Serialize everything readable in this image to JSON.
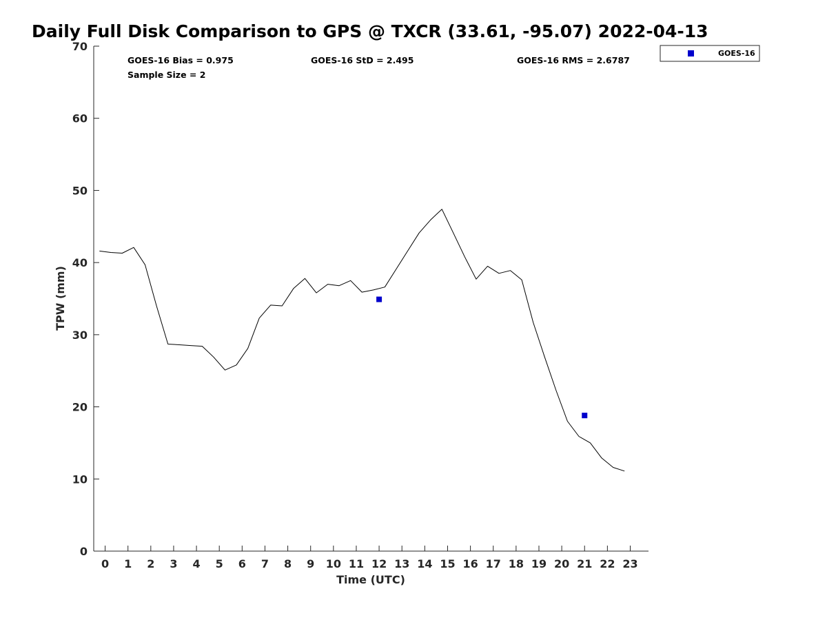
{
  "chart_data": {
    "type": "line",
    "title": "Daily Full Disk Comparison to GPS @ TXCR (33.61, -95.07) 2022-04-13",
    "xlabel": "Time (UTC)",
    "ylabel": "TPW (mm)",
    "xlim": [
      -0.5,
      23.8
    ],
    "ylim": [
      0,
      70
    ],
    "x_ticks": [
      "0",
      "1",
      "2",
      "3",
      "4",
      "5",
      "6",
      "7",
      "8",
      "9",
      "10",
      "11",
      "12",
      "13",
      "14",
      "15",
      "16",
      "17",
      "18",
      "19",
      "20",
      "21",
      "22",
      "23"
    ],
    "y_ticks": [
      "0",
      "10",
      "20",
      "30",
      "40",
      "50",
      "60",
      "70"
    ],
    "grid": false,
    "legend_position": "top-right",
    "stats": [
      {
        "text": "GOES-16 Bias = 0.975"
      },
      {
        "text": "GOES-16 StD = 2.495"
      },
      {
        "text": "GOES-16 RMS = 2.6787"
      },
      {
        "text": "Sample Size = 2"
      }
    ],
    "line_color": "#000000",
    "series": [
      {
        "style": "line",
        "color": "#000000",
        "x": [
          -0.25,
          0.25,
          0.75,
          1.25,
          1.75,
          2.25,
          2.75,
          3.25,
          3.75,
          4.25,
          4.75,
          5.25,
          5.75,
          6.25,
          6.75,
          7.25,
          7.75,
          8.25,
          8.75,
          9.25,
          9.75,
          10.25,
          10.75,
          11.25,
          11.75,
          12.25,
          12.75,
          13.25,
          13.75,
          14.25,
          14.75,
          15.25,
          15.75,
          16.25,
          16.75,
          17.25,
          17.75,
          18.25,
          18.75,
          19.25,
          19.75,
          20.25,
          20.75,
          21.25,
          21.75,
          22.25,
          22.75
        ],
        "y": [
          41.6,
          41.4,
          41.3,
          42.1,
          39.7,
          34.0,
          28.7,
          28.6,
          28.5,
          28.4,
          26.9,
          25.1,
          25.8,
          28.1,
          32.3,
          34.1,
          34.0,
          36.4,
          37.8,
          35.8,
          37.0,
          36.8,
          37.5,
          35.9,
          36.2,
          36.6,
          39.1,
          41.6,
          44.1,
          45.9,
          47.4,
          44.1,
          40.8,
          37.7,
          39.5,
          38.5,
          38.9,
          37.6,
          31.7,
          26.9,
          22.3,
          18.0,
          15.9,
          15.0,
          12.9,
          11.6,
          11.1
        ]
      },
      {
        "name": "GOES-16",
        "style": "markers",
        "color": "#0000cc",
        "x": [
          12.0,
          21.0
        ],
        "y": [
          34.9,
          18.8
        ]
      }
    ]
  }
}
